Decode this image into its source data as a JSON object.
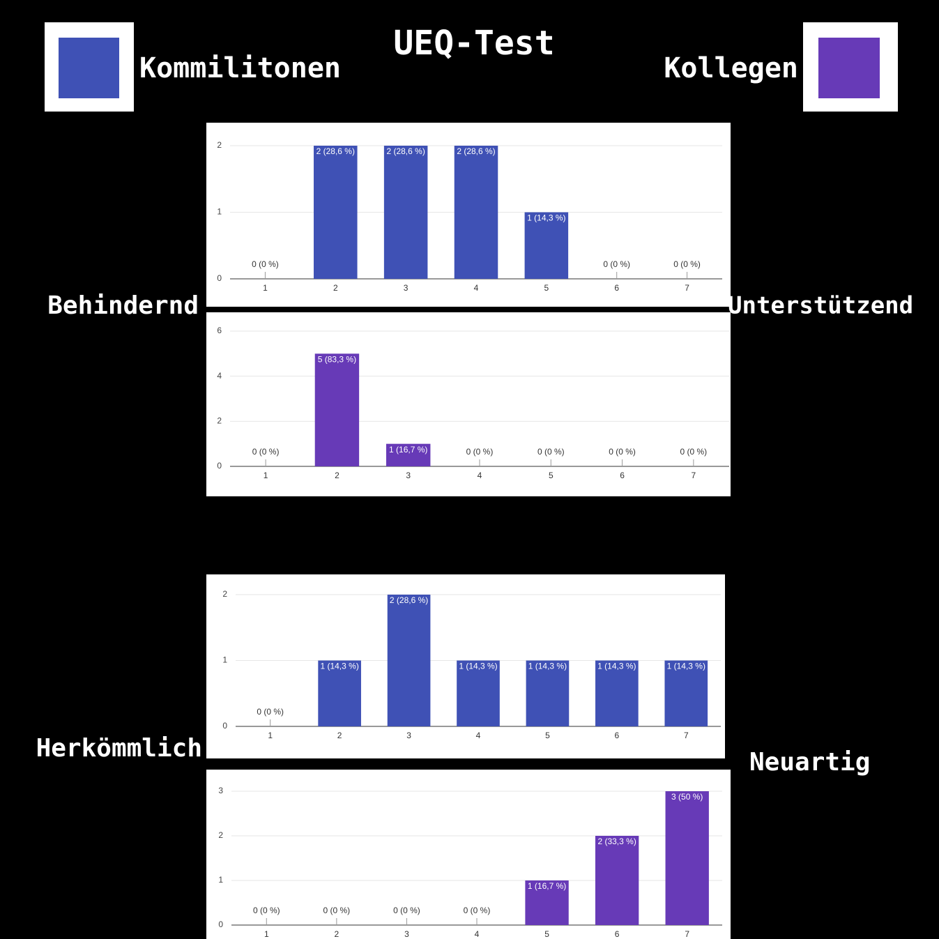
{
  "header": {
    "title": "UEQ-Test",
    "legend": [
      {
        "label": "Kommilitonen",
        "color": "#3f51b5"
      },
      {
        "label": "Kollegen",
        "color": "#673ab7"
      }
    ]
  },
  "scales": [
    {
      "left": "Behindernd",
      "right": "Unterstützend"
    },
    {
      "left": "Herkömmlich",
      "right": "Neuartig"
    }
  ],
  "chart_data": [
    {
      "type": "bar",
      "categories": [
        "1",
        "2",
        "3",
        "4",
        "5",
        "6",
        "7"
      ],
      "values": [
        0,
        2,
        2,
        2,
        1,
        0,
        0
      ],
      "value_labels": [
        "0 (0 %)",
        "2 (28,6 %)",
        "2 (28,6 %)",
        "2 (28,6 %)",
        "1 (14,3 %)",
        "0 (0 %)",
        "0 (0 %)"
      ],
      "color": "#3f51b5",
      "ylim": [
        0,
        2
      ],
      "yticks": [
        0,
        1,
        2
      ],
      "grid": true
    },
    {
      "type": "bar",
      "categories": [
        "1",
        "2",
        "3",
        "4",
        "5",
        "6",
        "7"
      ],
      "values": [
        0,
        5,
        1,
        0,
        0,
        0,
        0
      ],
      "value_labels": [
        "0 (0 %)",
        "5 (83,3 %)",
        "1 (16,7 %)",
        "0 (0 %)",
        "0 (0 %)",
        "0 (0 %)",
        "0 (0 %)"
      ],
      "color": "#673ab7",
      "ylim": [
        0,
        6
      ],
      "yticks": [
        0,
        2,
        4,
        6
      ],
      "grid": true
    },
    {
      "type": "bar",
      "categories": [
        "1",
        "2",
        "3",
        "4",
        "5",
        "6",
        "7"
      ],
      "values": [
        0,
        1,
        2,
        1,
        1,
        1,
        1
      ],
      "value_labels": [
        "0 (0 %)",
        "1 (14,3 %)",
        "2 (28,6 %)",
        "1 (14,3 %)",
        "1 (14,3 %)",
        "1 (14,3 %)",
        "1 (14,3 %)"
      ],
      "color": "#3f51b5",
      "ylim": [
        0,
        2
      ],
      "yticks": [
        0,
        1,
        2
      ],
      "grid": true
    },
    {
      "type": "bar",
      "categories": [
        "1",
        "2",
        "3",
        "4",
        "5",
        "6",
        "7"
      ],
      "values": [
        0,
        0,
        0,
        0,
        1,
        2,
        3
      ],
      "value_labels": [
        "0 (0 %)",
        "0 (0 %)",
        "0 (0 %)",
        "0 (0 %)",
        "1 (16,7 %)",
        "2 (33,3 %)",
        "3 (50 %)"
      ],
      "color": "#673ab7",
      "ylim": [
        0,
        3
      ],
      "yticks": [
        0,
        1,
        2,
        3
      ],
      "grid": true
    }
  ]
}
